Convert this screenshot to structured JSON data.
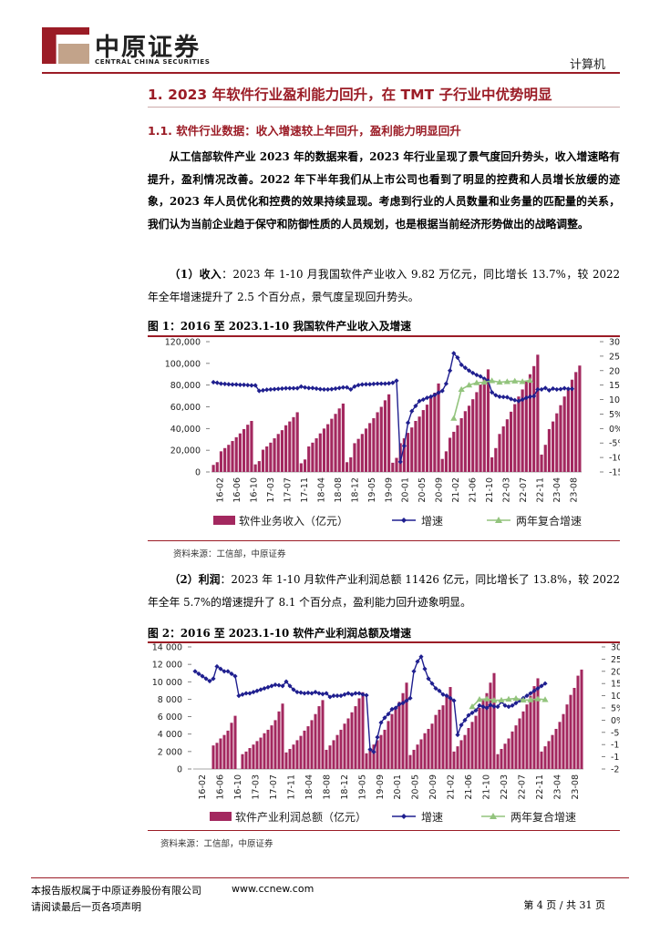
{
  "header": {
    "logo_cn": "中原证券",
    "logo_en": "CENTRAL CHINA SECURITIES",
    "category": "计算机"
  },
  "h1": "1. 2023 年软件行业盈利能力回升，在 TMT 子行业中优势明显",
  "h2": "1.1. 软件行业数据：收入增速较上年回升，盈利能力明显回升",
  "p1": "从工信部软件产业 2023 年的数据来看，2023 年行业呈现了景气度回升势头，收入增速略有提升，盈利情况改善。2022 年下半年我们从上市公司也看到了明显的控费和人员增长放缓的迹象，2023 年人员优化和控费的效果持续显现。考虑到行业的人员数量和业务量的匹配量的关系，我们认为当前企业趋于保守和防御性质的人员规划，也是根据当前经济形势做出的战略调整。",
  "p2_lead": "（1）收入",
  "p2_body": "：2023 年 1-10 月我国软件产业收入 9.82 万亿元，同比增长 13.7%，较 2022 年全年增速提升了 2.5 个百分点，景气度呈现回升势头。",
  "p3_lead": "（2）利润",
  "p3_body": "：2023 年 1-10 月软件产业利润总额 11426 亿元，同比增长了 13.8%，较 2022 年全年 5.7%的增速提升了 8.1 个百分点，盈利能力回升迹象明显。",
  "fig1_title": "图 1：2016 至 2023.1-10 我国软件产业收入及增速",
  "fig1_source": "资料来源：工信部，中原证券",
  "fig2_title": "图 2：2016 至 2023.1-10 软件产业利润总额及增速",
  "fig2_source": "资料来源：工信部，中原证券",
  "footer": {
    "copyright": "本报告版权属于中原证券股份有限公司",
    "url": "www.ccnew.com",
    "disclaimer": "请阅读最后一页各项声明",
    "page": "第 4 页 / 共 31 页"
  },
  "colors": {
    "brand": "#9b1c26",
    "bar": "#a3285f",
    "line": "#1f1f8f",
    "cagr": "#93c47d"
  },
  "chart_data": [
    {
      "type": "bar",
      "x_tick_labels": [
        "16-02",
        "16-06",
        "16-10",
        "17-03",
        "17-07",
        "17-11",
        "18-04",
        "18-08",
        "18-12",
        "19-05",
        "19-09",
        "20-01",
        "20-05",
        "20-09",
        "21-02",
        "21-06",
        "21-10",
        "22-03",
        "22-07",
        "22-11",
        "23-04",
        "23-08"
      ],
      "left_axis": {
        "ticks": [
          "0",
          "20,000",
          "40,000",
          "60,000",
          "80,000",
          "100,000",
          "120,000"
        ],
        "ylim": [
          0,
          120000
        ]
      },
      "right_axis": {
        "ticks": [
          "-15%",
          "-10%",
          "-5%",
          "0%",
          "5%",
          "10%",
          "15%",
          "20%",
          "25%",
          "30%"
        ],
        "ylim": [
          -15,
          30
        ]
      },
      "series": [
        {
          "name": "软件业务收入（亿元）",
          "kind": "bar",
          "axis": "left",
          "values": [
            6500,
            9000,
            19000,
            22000,
            25000,
            28500,
            32000,
            35500,
            39500,
            43500,
            47000,
            7000,
            10000,
            20500,
            23500,
            27000,
            31000,
            35000,
            38500,
            43000,
            46500,
            50500,
            55000,
            8000,
            11500,
            23500,
            27000,
            31000,
            35500,
            40000,
            44000,
            49000,
            53500,
            58500,
            63000,
            9000,
            13500,
            26500,
            30500,
            35000,
            40000,
            45000,
            49500,
            55000,
            60000,
            66000,
            71500,
            8500,
            13000,
            26500,
            31000,
            36000,
            41000,
            47000,
            51000,
            57000,
            62000,
            68500,
            73000,
            81500,
            12000,
            19000,
            31500,
            37000,
            43000,
            49500,
            56000,
            61000,
            67000,
            73500,
            80500,
            86000,
            94500,
            13500,
            22000,
            35000,
            42000,
            48500,
            55500,
            62500,
            69500,
            76000,
            83500,
            90000,
            97500,
            108000,
            16000,
            25000,
            39500,
            46500,
            54000,
            61500,
            69500,
            77000,
            85000,
            92000,
            98000
          ],
          "series_start_index": 0
        },
        {
          "name": "增速",
          "kind": "line",
          "axis": "right",
          "values": [
            16,
            15.8,
            15.5,
            15.4,
            15.3,
            15.2,
            15.2,
            15.1,
            15.1,
            15.0,
            14.9,
            14.9,
            13,
            13.2,
            13.4,
            13.5,
            13.6,
            13.7,
            13.8,
            13.9,
            13.9,
            13.9,
            13.9,
            14.5,
            14.2,
            14,
            14,
            13.8,
            13.6,
            13.5,
            13.5,
            13.6,
            13.8,
            14,
            14.2,
            14.2,
            13.5,
            14.5,
            15,
            15.2,
            15.3,
            15.3,
            15.4,
            15.5,
            15.5,
            15.5,
            15.6,
            15.8,
            16.5,
            -11.5,
            -6,
            2,
            6,
            7.8,
            9.5,
            10,
            10.6,
            11,
            11.6,
            12.4,
            13,
            15.5,
            20,
            26,
            24.5,
            22,
            21,
            20,
            19.2,
            18.5,
            18,
            17.2,
            16.5,
            12.5,
            11.5,
            11,
            10.9,
            10.8,
            10.2,
            9.8,
            9.5,
            10,
            10.6,
            11,
            11.2,
            13.5,
            13.5,
            14,
            13.2,
            13.8,
            13.5,
            13.6,
            13.9,
            13.7,
            13.7
          ]
        },
        {
          "name": "两年复合增速",
          "kind": "line",
          "axis": "right",
          "values": [
            3.5,
            13.5,
            15,
            15.8,
            16,
            16.5,
            16,
            16.2,
            16.4,
            16.2,
            16.6
          ]
        }
      ],
      "legend": [
        "软件业务收入（亿元）",
        "增速",
        "两年复合增速"
      ]
    },
    {
      "type": "bar",
      "x_tick_labels": [
        "16-02",
        "16-06",
        "16-10",
        "17-03",
        "17-07",
        "17-11",
        "18-04",
        "18-08",
        "18-12",
        "19-05",
        "19-09",
        "20-01",
        "20-05",
        "20-09",
        "21-02",
        "21-06",
        "21-10",
        "22-03",
        "22-07",
        "22-11",
        "23-04",
        "23-08"
      ],
      "left_axis": {
        "ticks": [
          "0",
          "2 000",
          "4 000",
          "6 000",
          "8 000",
          "10 000",
          "12 000",
          "14 000"
        ],
        "ylim": [
          0,
          14000
        ]
      },
      "right_axis": {
        "ticks": [
          "-20%",
          "-15%",
          "-10%",
          "-5%",
          "0%",
          "5%",
          "10%",
          "15%",
          "20%",
          "25%",
          "30%"
        ],
        "ylim": [
          -20,
          30
        ]
      },
      "series": [
        {
          "name": "软件产业利润总额（亿元）",
          "kind": "bar",
          "axis": "left",
          "values": [
            0,
            0,
            0,
            0,
            0,
            2700,
            3000,
            3500,
            3900,
            4400,
            5300,
            6100,
            0,
            1700,
            2000,
            2400,
            2800,
            3200,
            3600,
            4100,
            4500,
            5000,
            5600,
            6600,
            7500,
            1900,
            2300,
            2800,
            3300,
            3800,
            4400,
            4900,
            5600,
            6300,
            7200,
            7900,
            2200,
            2700,
            3300,
            3900,
            4500,
            5200,
            5800,
            6500,
            7200,
            8100,
            8800,
            1800,
            2300,
            2800,
            3300,
            3900,
            4500,
            5500,
            6300,
            7000,
            7700,
            8700,
            9900,
            1600,
            2200,
            2800,
            3400,
            4100,
            4600,
            5200,
            6200,
            6800,
            7300,
            8300,
            9400,
            2000,
            2600,
            3300,
            3900,
            4700,
            5400,
            6100,
            7000,
            7900,
            8700,
            9900,
            11000,
            1700,
            2300,
            2900,
            3500,
            4300,
            5000,
            5800,
            6600,
            7400,
            8400,
            9500,
            10400,
            2000,
            2600,
            3200,
            3900,
            4600,
            5400,
            6300,
            7400,
            8500,
            9300,
            10700,
            11400
          ],
          "series_start_index": 0
        },
        {
          "name": "增速",
          "kind": "line",
          "axis": "right",
          "values": [
            20,
            19,
            18,
            17,
            16,
            17,
            22,
            21,
            20,
            20,
            19,
            18,
            10,
            10.5,
            11,
            11,
            11.5,
            12,
            12.5,
            13,
            13.5,
            14,
            14.5,
            14.3,
            14,
            15.8,
            14,
            12.5,
            11.5,
            11.3,
            11,
            11.2,
            11,
            11.5,
            11,
            10.7,
            11,
            9.5,
            10,
            10,
            10,
            10.5,
            11,
            10.5,
            11,
            11,
            10.5,
            10.2,
            -12,
            -13,
            -7,
            -1,
            1,
            2.5,
            4.5,
            5,
            6.5,
            7,
            8,
            9,
            20,
            24,
            26,
            21,
            17,
            15,
            13,
            12,
            10.5,
            10,
            9,
            8,
            -6,
            -2,
            0,
            2,
            3,
            4,
            6,
            5.5,
            5,
            6.2,
            5.6,
            5.5,
            7.6,
            6,
            5.5,
            6,
            7,
            8,
            9,
            10,
            11,
            12,
            13,
            14,
            15
          ]
        },
        {
          "name": "两年复合增速",
          "kind": "line",
          "axis": "right",
          "values": [
            5.5,
            8.5,
            8.7,
            8.1,
            8.2,
            8.6,
            8.9,
            8.2,
            8.3,
            8.7,
            8.4
          ]
        }
      ],
      "legend": [
        "软件产业利润总额（亿元）",
        "增速",
        "两年复合增速"
      ]
    }
  ]
}
